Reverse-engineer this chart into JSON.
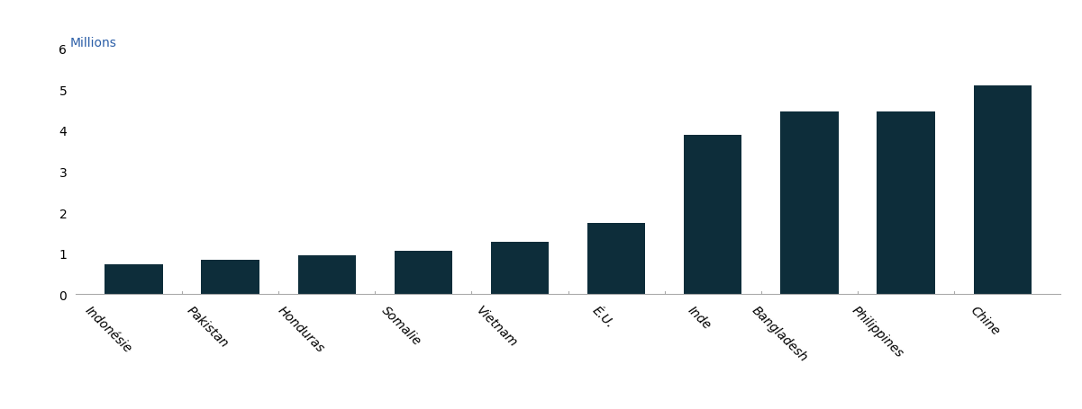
{
  "categories": [
    "Indonésie",
    "Pakistan",
    "Honduras",
    "Somalie",
    "Vietnam",
    "É.U.",
    "Inde",
    "Bangladesh",
    "Philippines",
    "Chine"
  ],
  "values": [
    0.72,
    0.85,
    0.96,
    1.07,
    1.28,
    1.75,
    3.88,
    4.45,
    4.45,
    5.1
  ],
  "bar_color": "#0d2d3a",
  "ylabel": "Millions",
  "ylim": [
    0,
    6
  ],
  "yticks": [
    0,
    1,
    2,
    3,
    4,
    5,
    6
  ],
  "ylabel_color": "#2c5fa8",
  "ylabel_fontsize": 10,
  "tick_label_fontsize": 10,
  "background_color": "#ffffff",
  "bar_width": 0.6,
  "spine_color": "#aaaaaa",
  "tick_color": "#aaaaaa"
}
